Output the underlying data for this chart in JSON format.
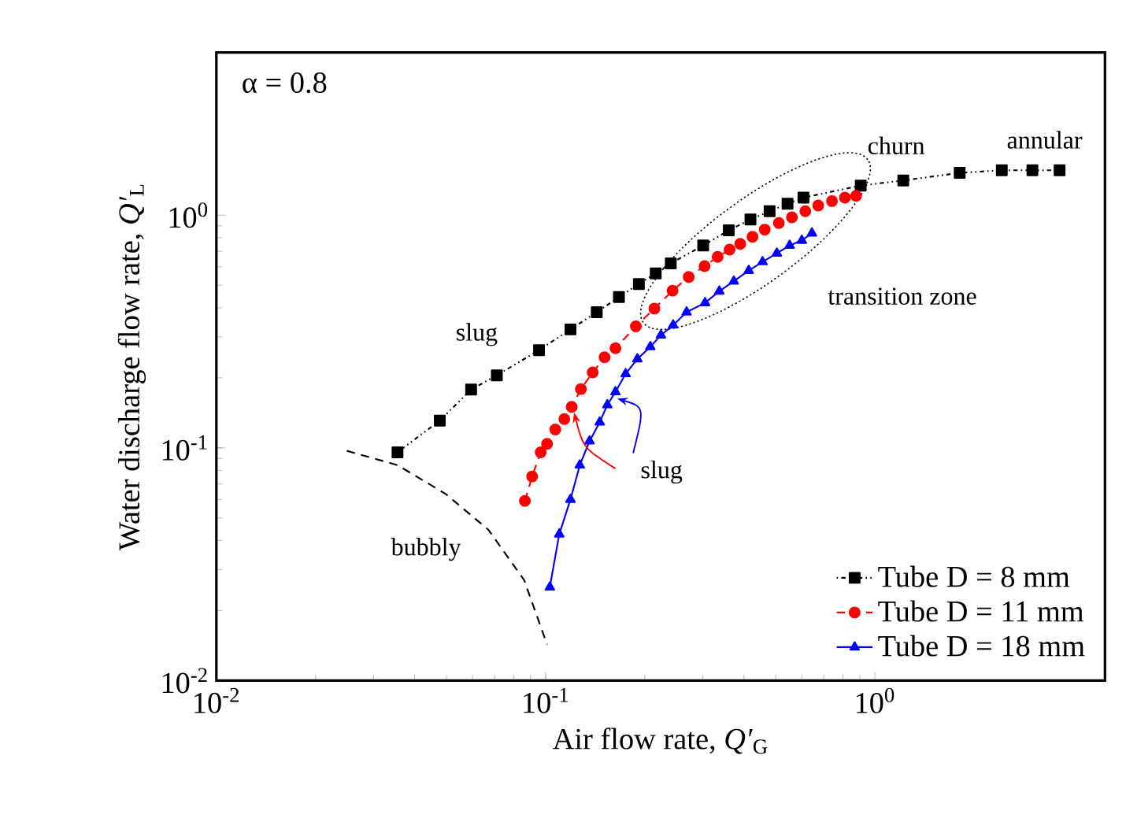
{
  "chart_data": {
    "type": "line",
    "xlabel": "Air flow rate, *Q′*$_{G}$",
    "ylabel": "Water discharge flow rate, *Q′*$_{L}$",
    "log": "xy",
    "xlim": [
      0.01,
      5
    ],
    "ylim": [
      0.01,
      5
    ],
    "xticks": [
      {
        "value": 0.01,
        "label": "10$^{-2}$"
      },
      {
        "value": 0.1,
        "label": "10$^{-1}$"
      },
      {
        "value": 1,
        "label": "10$^{0}$"
      }
    ],
    "yticks": [
      {
        "value": 0.01,
        "label": "10$^{-2}$"
      },
      {
        "value": 0.1,
        "label": "10$^{-1}$"
      },
      {
        "value": 1,
        "label": "10$^{0}$"
      }
    ],
    "grid": false,
    "legend": "bottom right",
    "series": [
      {
        "name": "Tube D = 8 mm",
        "color": "#000000",
        "marker": "square",
        "line_style": "dotted",
        "x": [
          0.0355,
          0.0477,
          0.0594,
          0.0711,
          0.0955,
          0.119,
          0.143,
          0.167,
          0.192,
          0.216,
          0.24,
          0.301,
          0.36,
          0.419,
          0.479,
          0.543,
          0.607,
          0.906,
          1.22,
          1.81,
          2.43,
          3.01,
          3.64
        ],
        "values": [
          0.0957,
          0.131,
          0.178,
          0.205,
          0.263,
          0.323,
          0.383,
          0.445,
          0.506,
          0.562,
          0.621,
          0.741,
          0.861,
          0.958,
          1.04,
          1.12,
          1.19,
          1.34,
          1.41,
          1.52,
          1.56,
          1.56,
          1.56
        ]
      },
      {
        "name": "Tube D = 11 mm",
        "color": "#ff0000",
        "marker": "circle",
        "line_style": "dashed",
        "x": [
          0.0865,
          0.091,
          0.0966,
          0.101,
          0.107,
          0.114,
          0.12,
          0.128,
          0.139,
          0.151,
          0.163,
          0.188,
          0.214,
          0.243,
          0.272,
          0.304,
          0.333,
          0.362,
          0.39,
          0.425,
          0.463,
          0.511,
          0.56,
          0.615,
          0.673,
          0.741,
          0.811,
          0.877
        ],
        "values": [
          0.0592,
          0.0754,
          0.0957,
          0.104,
          0.12,
          0.133,
          0.15,
          0.179,
          0.211,
          0.245,
          0.268,
          0.333,
          0.397,
          0.474,
          0.543,
          0.604,
          0.662,
          0.711,
          0.753,
          0.807,
          0.867,
          0.925,
          0.979,
          1.04,
          1.1,
          1.15,
          1.19,
          1.21
        ]
      },
      {
        "name": "Tube D = 18 mm",
        "color": "#0000ff",
        "marker": "triangle",
        "line_style": "solid",
        "x": [
          0.103,
          0.11,
          0.119,
          0.127,
          0.136,
          0.146,
          0.154,
          0.163,
          0.175,
          0.19,
          0.208,
          0.224,
          0.244,
          0.268,
          0.305,
          0.337,
          0.373,
          0.414,
          0.456,
          0.504,
          0.551,
          0.6,
          0.644
        ],
        "values": [
          0.0252,
          0.0426,
          0.06,
          0.0843,
          0.107,
          0.129,
          0.153,
          0.174,
          0.208,
          0.241,
          0.272,
          0.305,
          0.337,
          0.383,
          0.42,
          0.471,
          0.52,
          0.578,
          0.63,
          0.686,
          0.741,
          0.779,
          0.837
        ]
      },
      {
        "color": "#000000",
        "marker": "none",
        "line_style": "dashed",
        "x": [
          0.0249,
          0.0355,
          0.0497,
          0.067,
          0.0861,
          0.101
        ],
        "values": [
          0.0971,
          0.0843,
          0.0634,
          0.0445,
          0.027,
          0.0143
        ]
      }
    ],
    "annotations": [
      "α = 0.8",
      "slug",
      "churn",
      "annular",
      "transition zone",
      {
        "text": "slug",
        "x": 0.165,
        "y": 0.163
      },
      "bubbly"
    ]
  }
}
